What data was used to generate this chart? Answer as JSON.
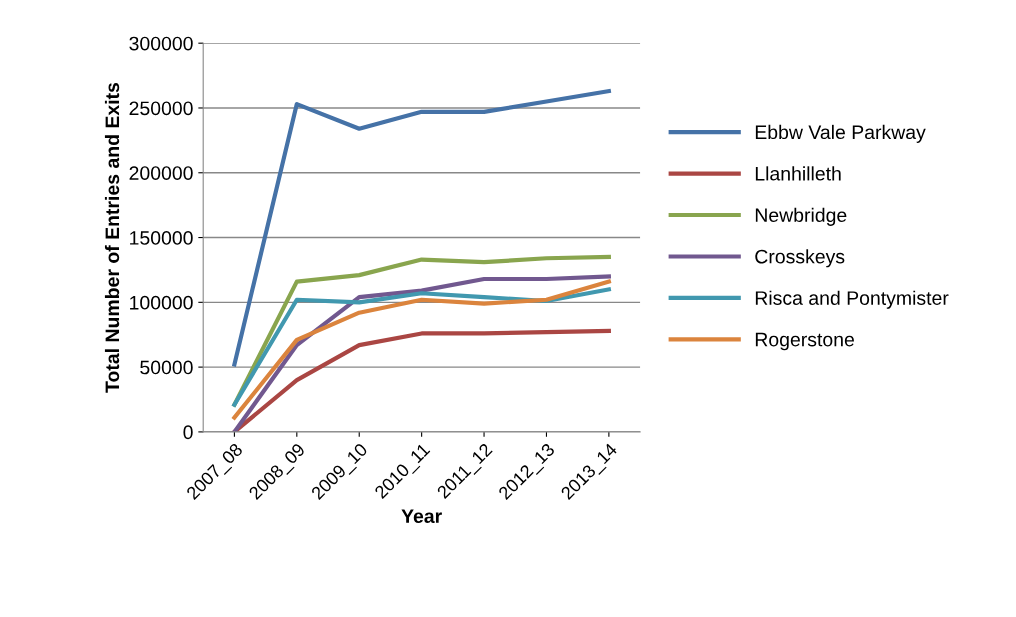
{
  "chart_data": {
    "type": "line",
    "xlabel": "Year",
    "ylabel": "Total Number of Entries and Exits",
    "categories": [
      "2007_08",
      "2008_09",
      "2009_10",
      "2010_11",
      "2011_12",
      "2012_13",
      "2013_14"
    ],
    "series": [
      {
        "name": "Ebbw Vale Parkway",
        "color": "#4572a7",
        "values": [
          52000,
          253000,
          234000,
          247000,
          247000,
          255000,
          263000
        ]
      },
      {
        "name": "Llanhilleth",
        "color": "#aa4643",
        "values": [
          0,
          40000,
          67000,
          76000,
          76000,
          77000,
          78000
        ]
      },
      {
        "name": "Newbridge",
        "color": "#89a54e",
        "values": [
          21000,
          116000,
          121000,
          133000,
          131000,
          134000,
          135000
        ]
      },
      {
        "name": "Crosskeys",
        "color": "#71588f",
        "values": [
          0,
          67000,
          104000,
          109000,
          118000,
          118000,
          120000
        ]
      },
      {
        "name": "Risca and Pontymister",
        "color": "#4198af",
        "values": [
          21000,
          102000,
          100000,
          107000,
          104000,
          101000,
          110000
        ]
      },
      {
        "name": "Rogerstone",
        "color": "#db843d",
        "values": [
          11000,
          71000,
          92000,
          102000,
          99000,
          102000,
          116000
        ]
      }
    ],
    "ylim": [
      0,
      300000
    ],
    "yticks": [
      0,
      50000,
      100000,
      150000,
      200000,
      250000,
      300000
    ],
    "grid": "y",
    "legend": "right",
    "marker": "none",
    "line_style": "solid"
  }
}
